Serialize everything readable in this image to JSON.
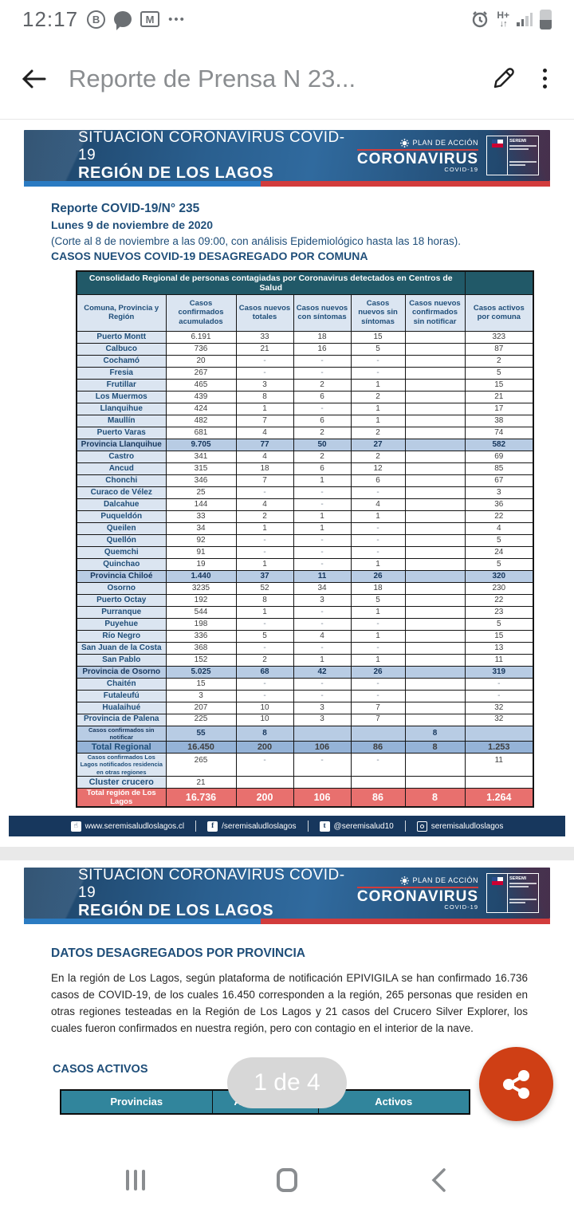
{
  "status_bar": {
    "time": "12:17",
    "network_type": "H+",
    "network_arrows": "↓↑"
  },
  "app_bar": {
    "title": "Reporte de Prensa N 23..."
  },
  "banner": {
    "title_line1": "SITUACIÓN CORONAVIRUS COVID-19",
    "title_line2": "REGIÓN DE LOS LAGOS",
    "plan_label": "PLAN DE ACCIÓN",
    "logo_title": "CORONAVIRUS",
    "logo_sub": "COVID-19",
    "seremi_label": "SEREMI"
  },
  "page1": {
    "report": {
      "title": "Reporte COVID-19/N° 235",
      "date": "Lunes 9 de noviembre de 2020",
      "note": "(Corte al 8 de noviembre a las 09:00, con análisis Epidemiológico hasta las 18 horas).",
      "subtitle": "CASOS NUEVOS COVID-19 DESAGREGADO POR COMUNA"
    },
    "table": {
      "caption": "Consolidado Regional de personas contagiadas por Coronavirus detectados en Centros de Salud",
      "columns": [
        "Comuna, Provincia y Región",
        "Casos confirmados acumulados",
        "Casos nuevos totales",
        "Casos nuevos con síntomas",
        "Casos nuevos sin síntomas",
        "Casos nuevos confirmados sin notificar",
        "Casos activos por comuna"
      ],
      "rows": [
        {
          "type": "comuna",
          "label": "Puerto Montt",
          "values": [
            "6.191",
            "33",
            "18",
            "15",
            "",
            "323"
          ]
        },
        {
          "type": "comuna",
          "label": "Calbuco",
          "values": [
            "736",
            "21",
            "16",
            "5",
            "",
            "87"
          ]
        },
        {
          "type": "comuna",
          "label": "Cochamó",
          "values": [
            "20",
            "-",
            "-",
            "-",
            "",
            "2"
          ]
        },
        {
          "type": "comuna",
          "label": "Fresia",
          "values": [
            "267",
            "-",
            "-",
            "-",
            "",
            "5"
          ]
        },
        {
          "type": "comuna",
          "label": "Frutillar",
          "values": [
            "465",
            "3",
            "2",
            "1",
            "",
            "15"
          ]
        },
        {
          "type": "comuna",
          "label": "Los Muermos",
          "values": [
            "439",
            "8",
            "6",
            "2",
            "",
            "21"
          ]
        },
        {
          "type": "comuna",
          "label": "Llanquihue",
          "values": [
            "424",
            "1",
            "-",
            "1",
            "",
            "17"
          ]
        },
        {
          "type": "comuna",
          "label": "Maullín",
          "values": [
            "482",
            "7",
            "6",
            "1",
            "",
            "38"
          ]
        },
        {
          "type": "comuna",
          "label": "Puerto Varas",
          "values": [
            "681",
            "4",
            "2",
            "2",
            "",
            "74"
          ]
        },
        {
          "type": "province",
          "label": "Provincia Llanquihue",
          "values": [
            "9.705",
            "77",
            "50",
            "27",
            "",
            "582"
          ]
        },
        {
          "type": "comuna",
          "label": "Castro",
          "values": [
            "341",
            "4",
            "2",
            "2",
            "",
            "69"
          ]
        },
        {
          "type": "comuna",
          "label": "Ancud",
          "values": [
            "315",
            "18",
            "6",
            "12",
            "",
            "85"
          ]
        },
        {
          "type": "comuna",
          "label": "Chonchi",
          "values": [
            "346",
            "7",
            "1",
            "6",
            "",
            "67"
          ]
        },
        {
          "type": "comuna",
          "label": "Curaco de Vélez",
          "values": [
            "25",
            "-",
            "-",
            "-",
            "",
            "3"
          ]
        },
        {
          "type": "comuna",
          "label": "Dalcahue",
          "values": [
            "144",
            "4",
            "-",
            "4",
            "",
            "36"
          ]
        },
        {
          "type": "comuna",
          "label": "Puqueldón",
          "values": [
            "33",
            "2",
            "1",
            "1",
            "",
            "22"
          ]
        },
        {
          "type": "comuna",
          "label": "Queilen",
          "values": [
            "34",
            "1",
            "1",
            "-",
            "",
            "4"
          ]
        },
        {
          "type": "comuna",
          "label": "Quellón",
          "values": [
            "92",
            "-",
            "-",
            "-",
            "",
            "5"
          ]
        },
        {
          "type": "comuna",
          "label": "Quemchi",
          "values": [
            "91",
            "-",
            "-",
            "-",
            "",
            "24"
          ]
        },
        {
          "type": "comuna",
          "label": "Quinchao",
          "values": [
            "19",
            "1",
            "-",
            "1",
            "",
            "5"
          ]
        },
        {
          "type": "province",
          "label": "Provincia Chiloé",
          "values": [
            "1.440",
            "37",
            "11",
            "26",
            "",
            "320"
          ]
        },
        {
          "type": "comuna",
          "label": "Osorno",
          "values": [
            "3235",
            "52",
            "34",
            "18",
            "",
            "230"
          ]
        },
        {
          "type": "comuna",
          "label": "Puerto Octay",
          "values": [
            "192",
            "8",
            "3",
            "5",
            "",
            "22"
          ]
        },
        {
          "type": "comuna",
          "label": "Purranque",
          "values": [
            "544",
            "1",
            "-",
            "1",
            "",
            "23"
          ]
        },
        {
          "type": "comuna",
          "label": "Puyehue",
          "values": [
            "198",
            "-",
            "-",
            "-",
            "",
            "5"
          ]
        },
        {
          "type": "comuna",
          "label": "Río Negro",
          "values": [
            "336",
            "5",
            "4",
            "1",
            "",
            "15"
          ]
        },
        {
          "type": "comuna",
          "label": "San Juan de la Costa",
          "values": [
            "368",
            "-",
            "-",
            "-",
            "",
            "13"
          ]
        },
        {
          "type": "comuna",
          "label": "San Pablo",
          "values": [
            "152",
            "2",
            "1",
            "1",
            "",
            "11"
          ]
        },
        {
          "type": "province",
          "label": "Provincia de Osorno",
          "values": [
            "5.025",
            "68",
            "42",
            "26",
            "",
            "319"
          ]
        },
        {
          "type": "comuna",
          "label": "Chaitén",
          "values": [
            "15",
            "-",
            "-",
            "-",
            "",
            "-"
          ]
        },
        {
          "type": "comuna",
          "label": "Futaleufú",
          "values": [
            "3",
            "-",
            "-",
            "-",
            "",
            "-"
          ]
        },
        {
          "type": "comuna",
          "label": "Hualaihué",
          "values": [
            "207",
            "10",
            "3",
            "7",
            "",
            "32"
          ]
        },
        {
          "type": "palena",
          "label": "Provincia de Palena",
          "values": [
            "225",
            "10",
            "3",
            "7",
            "",
            "32"
          ]
        },
        {
          "type": "notify",
          "label": "Casos confirmados sin notificar",
          "values": [
            "55",
            "8",
            "",
            "",
            "8",
            ""
          ]
        },
        {
          "type": "totalblue",
          "label": "Total Regional",
          "values": [
            "16.450",
            "200",
            "106",
            "86",
            "8",
            "1.253"
          ]
        },
        {
          "type": "otras",
          "label": "Casos confirmados Los Lagos notificados residencia en otras regiones",
          "values": [
            "265",
            "-",
            "-",
            "-",
            "",
            "11"
          ]
        },
        {
          "type": "cluster",
          "label": "Cluster crucero",
          "values": [
            "21",
            "",
            "",
            "",
            "",
            ""
          ]
        },
        {
          "type": "totalred",
          "label": "Total región de Los Lagos",
          "values": [
            "16.736",
            "200",
            "106",
            "86",
            "8",
            "1.264"
          ]
        }
      ]
    },
    "footer": {
      "links": [
        {
          "icon": "web-icon",
          "text": "www.seremisaludloslagos.cl"
        },
        {
          "icon": "facebook-icon",
          "text": "/seremisaludloslagos"
        },
        {
          "icon": "twitter-icon",
          "text": "@seremisalud10"
        },
        {
          "icon": "instagram-icon",
          "text": "seremisaludloslagos"
        }
      ]
    }
  },
  "page2": {
    "heading": "DATOS DESAGREGADOS POR PROVINCIA",
    "paragraph": "En la región de Los Lagos, según plataforma de notificación EPIVIGILA se han confirmado 16.736 casos de COVID-19, de los cuales 16.450 corresponden a la región, 265 personas que residen en otras regiones testeadas en la Región de Los Lagos y 21 casos del Crucero Silver Explorer, los cuales fueron confirmados en nuestra región, pero con contagio en el interior de la nave.",
    "casos_activos_label": "CASOS ACTIVOS",
    "table": {
      "columns": [
        "Provincias",
        "Acumulados",
        "Activos"
      ]
    }
  },
  "overlay": {
    "page_indicator": "1 de 4"
  },
  "colors": {
    "navy": "#17375d",
    "title_blue": "#1f4e79",
    "caption_teal": "#215968",
    "header_teal": "#31859c",
    "light_blue": "#dbe5f1",
    "mid_blue": "#b8cce4",
    "steel_blue": "#95b3d7",
    "total_red": "#e8706e",
    "stripe_red": "#d23c3c",
    "stripe_blue": "#2b7bc2",
    "fab_orange": "#cf3f15"
  }
}
